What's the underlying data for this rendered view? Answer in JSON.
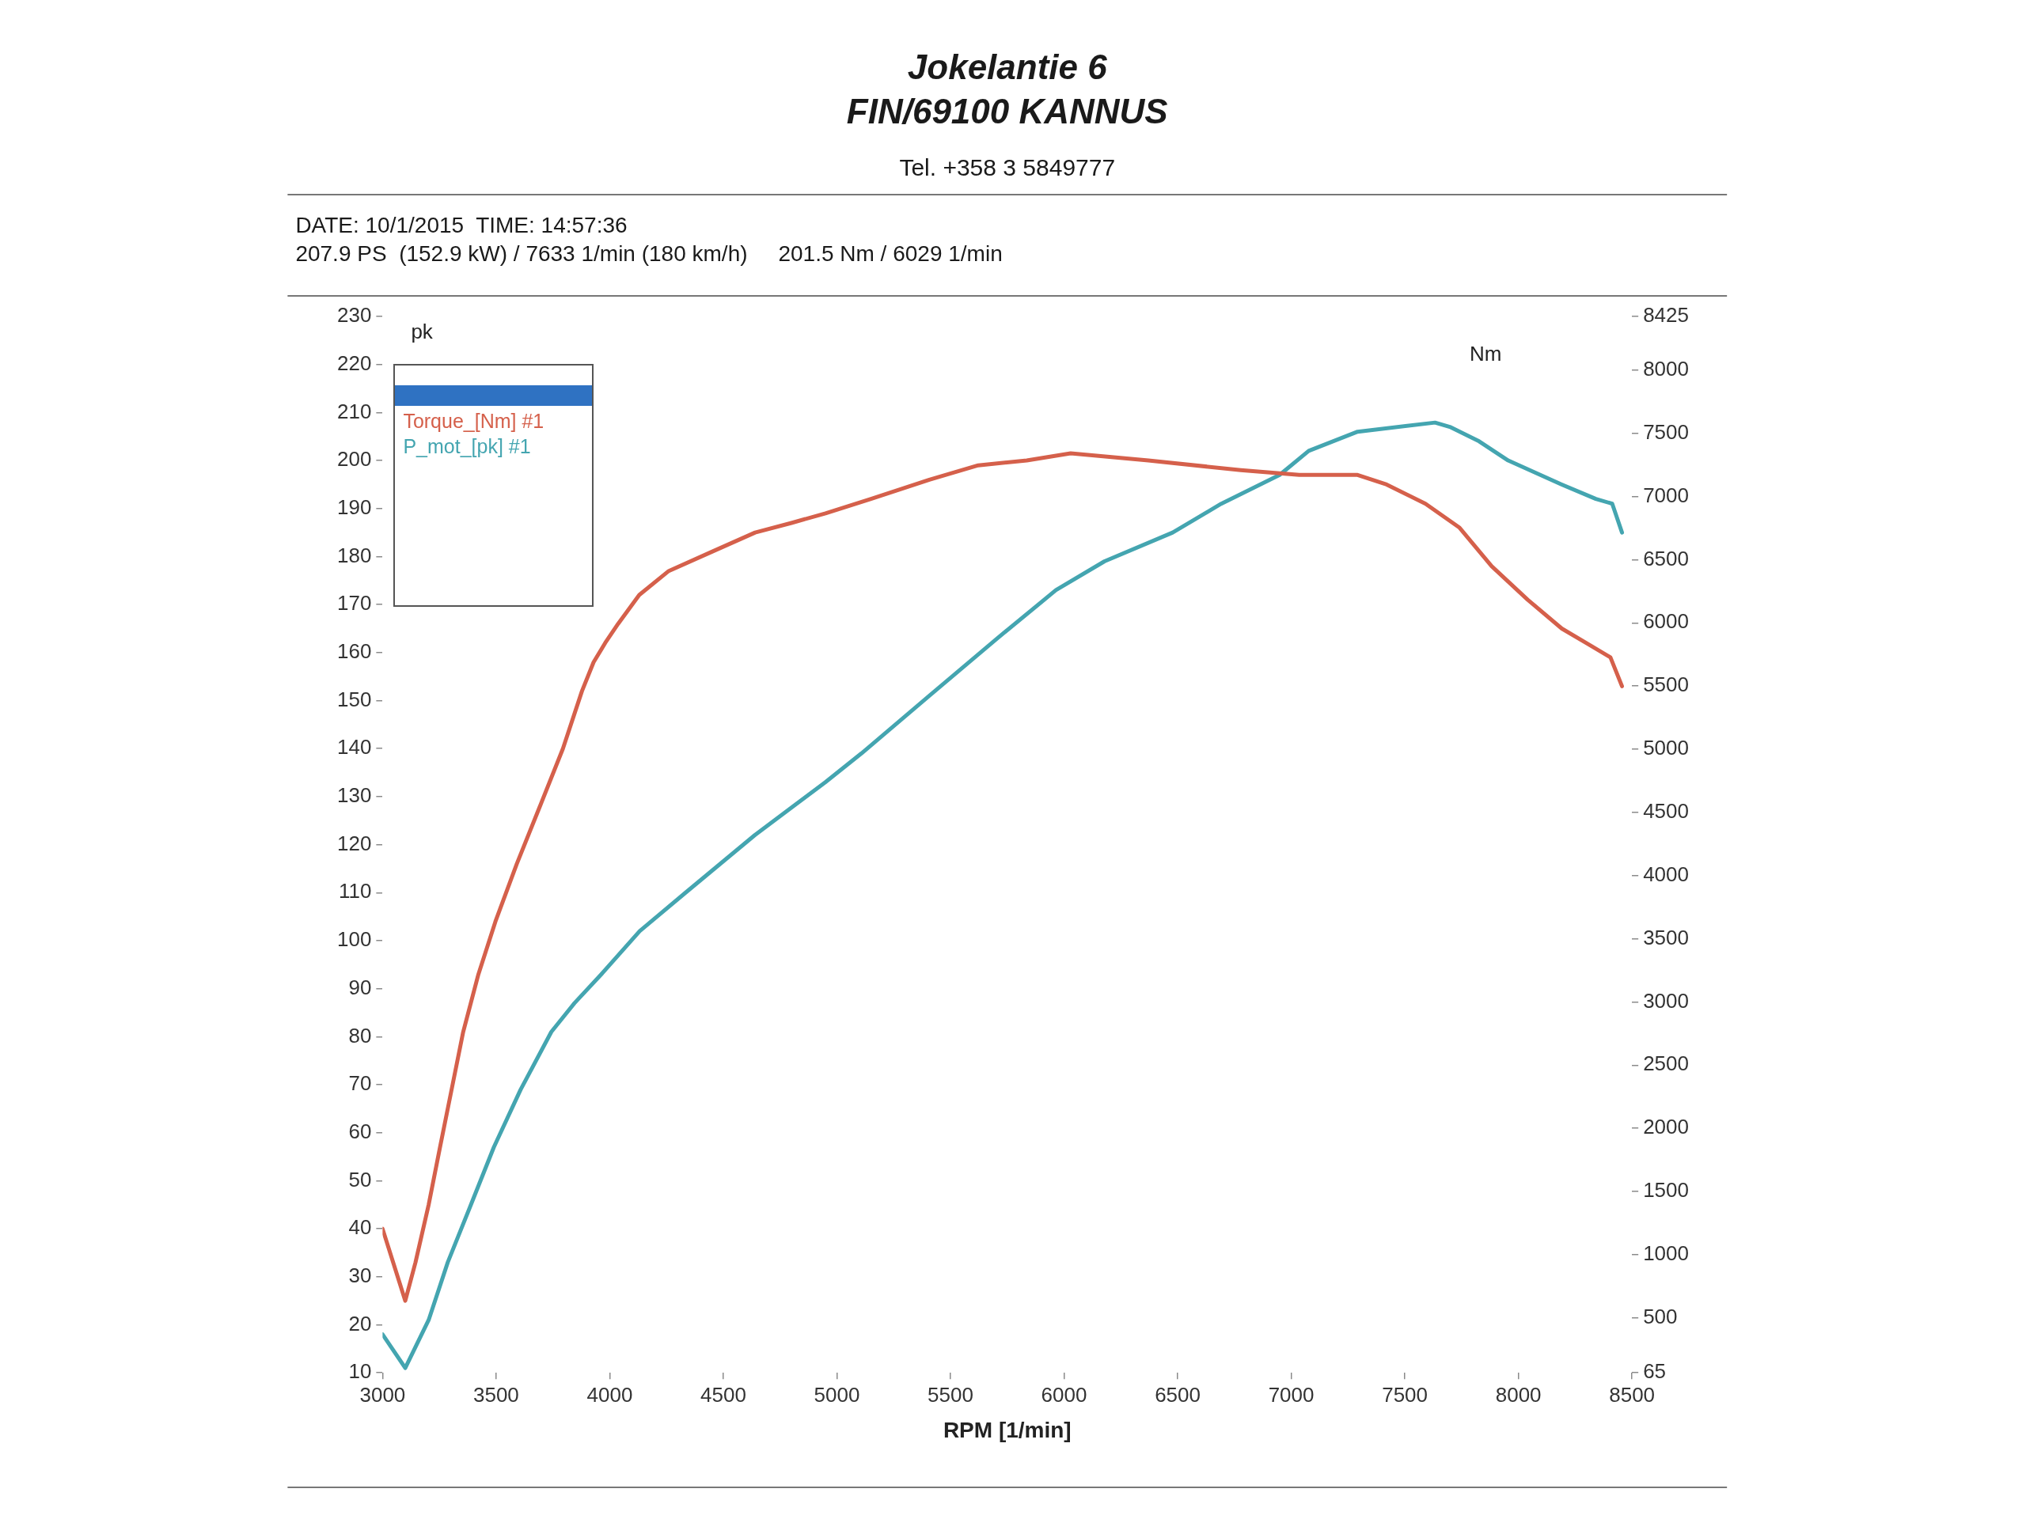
{
  "chart_data": {
    "type": "line",
    "title": "Jokelantie 6",
    "subtitle": "FIN/69100 KANNUS",
    "xlabel": "RPM [1/min]",
    "ylabel": "pk",
    "y2label": "Nm",
    "annotations": [
      "Tel. +358 3 5849777",
      "DATE: 10/1/2015  TIME: 14:57:36",
      "207.9 PS  (152.9 kW) / 7633 1/min (180 km/h)     201.5 Nm / 6029 1/min"
    ],
    "series": [
      {
        "name": "Torque_[Nm] #1",
        "color": "#d5604b",
        "x": [
          3000,
          3100,
          3145,
          3203,
          3253,
          3304,
          3355,
          3422,
          3497,
          3591,
          3693,
          3794,
          3878,
          3929,
          3980,
          4037,
          4130,
          4260,
          4450,
          4640,
          4800,
          4950,
          5150,
          5407,
          5622,
          5836,
          6029,
          6371,
          6778,
          7035,
          7292,
          7420,
          7591,
          7741,
          7882,
          8041,
          8191,
          8298,
          8405,
          8456
        ],
        "values": [
          40,
          25,
          33,
          45,
          57,
          69,
          81,
          93,
          104,
          116,
          128,
          140,
          152,
          158,
          162,
          166,
          172,
          177,
          181,
          185,
          187,
          189,
          192,
          196,
          199,
          200,
          201.5,
          200,
          198,
          197,
          197,
          195,
          191,
          186,
          178,
          171,
          165,
          162,
          159,
          153
        ]
      },
      {
        "name": "P_mot_[pk] #1",
        "color": "#44a5b0",
        "x": [
          3000,
          3100,
          3203,
          3287,
          3389,
          3490,
          3608,
          3743,
          3845,
          3963,
          4132,
          4334,
          4639,
          4949,
          5108,
          5407,
          5707,
          5964,
          6178,
          6478,
          6692,
          6949,
          7077,
          7292,
          7633,
          7698,
          7827,
          7955,
          8191,
          8341,
          8413,
          8456
        ],
        "values": [
          18,
          11,
          21,
          33,
          45,
          57,
          69,
          81,
          87,
          93,
          102,
          110,
          122,
          133,
          139,
          151,
          163,
          173,
          179,
          185,
          191,
          197,
          202,
          206,
          207.9,
          207,
          204,
          200,
          195,
          192,
          191,
          185
        ]
      }
    ],
    "xlim": [
      3000,
      8500
    ],
    "xticks": [
      3000,
      3500,
      4000,
      4500,
      5000,
      5500,
      6000,
      6500,
      7000,
      7500,
      8000,
      8500
    ],
    "ylim": [
      10,
      230
    ],
    "yticks": [
      10,
      20,
      30,
      40,
      50,
      60,
      70,
      80,
      90,
      100,
      110,
      120,
      130,
      140,
      150,
      160,
      170,
      180,
      190,
      200,
      210,
      220,
      230
    ],
    "y2lim": [
      65,
      8425
    ],
    "y2ticks": [
      65,
      500,
      1000,
      1500,
      2000,
      2500,
      3000,
      3500,
      4000,
      4500,
      5000,
      5500,
      6000,
      6500,
      7000,
      7500,
      8000,
      8425
    ],
    "grid": false,
    "legend": "top left",
    "marker": "none",
    "line_style": "solid"
  }
}
